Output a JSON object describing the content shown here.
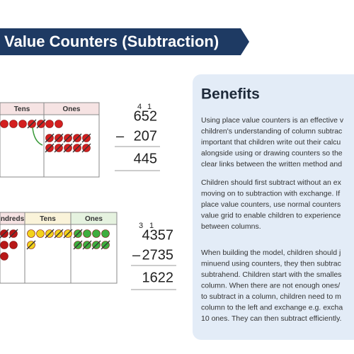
{
  "banner": {
    "title": "Value Counters (Subtraction)"
  },
  "example_1": {
    "table": {
      "headers": [
        "Tens",
        "Ones"
      ]
    },
    "sum": {
      "exchanges": [
        "4",
        "1"
      ],
      "minuend": "652",
      "operator": "–",
      "subtrahend": "207",
      "answer": "445"
    }
  },
  "example_2": {
    "table": {
      "headers": [
        "ndreds",
        "Tens",
        "Ones"
      ]
    },
    "sum": {
      "exchanges": [
        "3",
        "1"
      ],
      "minuend": "4357",
      "operator": "–",
      "subtrahend": "2735",
      "answer": "1622"
    }
  },
  "benefits": {
    "heading": "Benefits",
    "paragraphs": [
      [
        "Using place value counters is an effective v",
        "children's understanding of column subtrac",
        "important that children write out their calcu",
        "alongside using or drawing counters so the",
        "clear links between the written method and"
      ],
      [
        "Children should first subtract without an ex",
        "moving on to subtraction with exchange. If",
        "place value counters, use normal counters",
        "value grid to enable children to experience",
        "between columns."
      ],
      [
        "When building the model, children should j",
        "minuend using counters, they then subtrac",
        "subtrahend. Children start with the smalles",
        "column. When there are not enough ones/",
        "to subtract in a column, children need to m",
        "column to the left and exchange e.g. excha",
        "10 ones. They can then subtract efficiently."
      ]
    ]
  }
}
